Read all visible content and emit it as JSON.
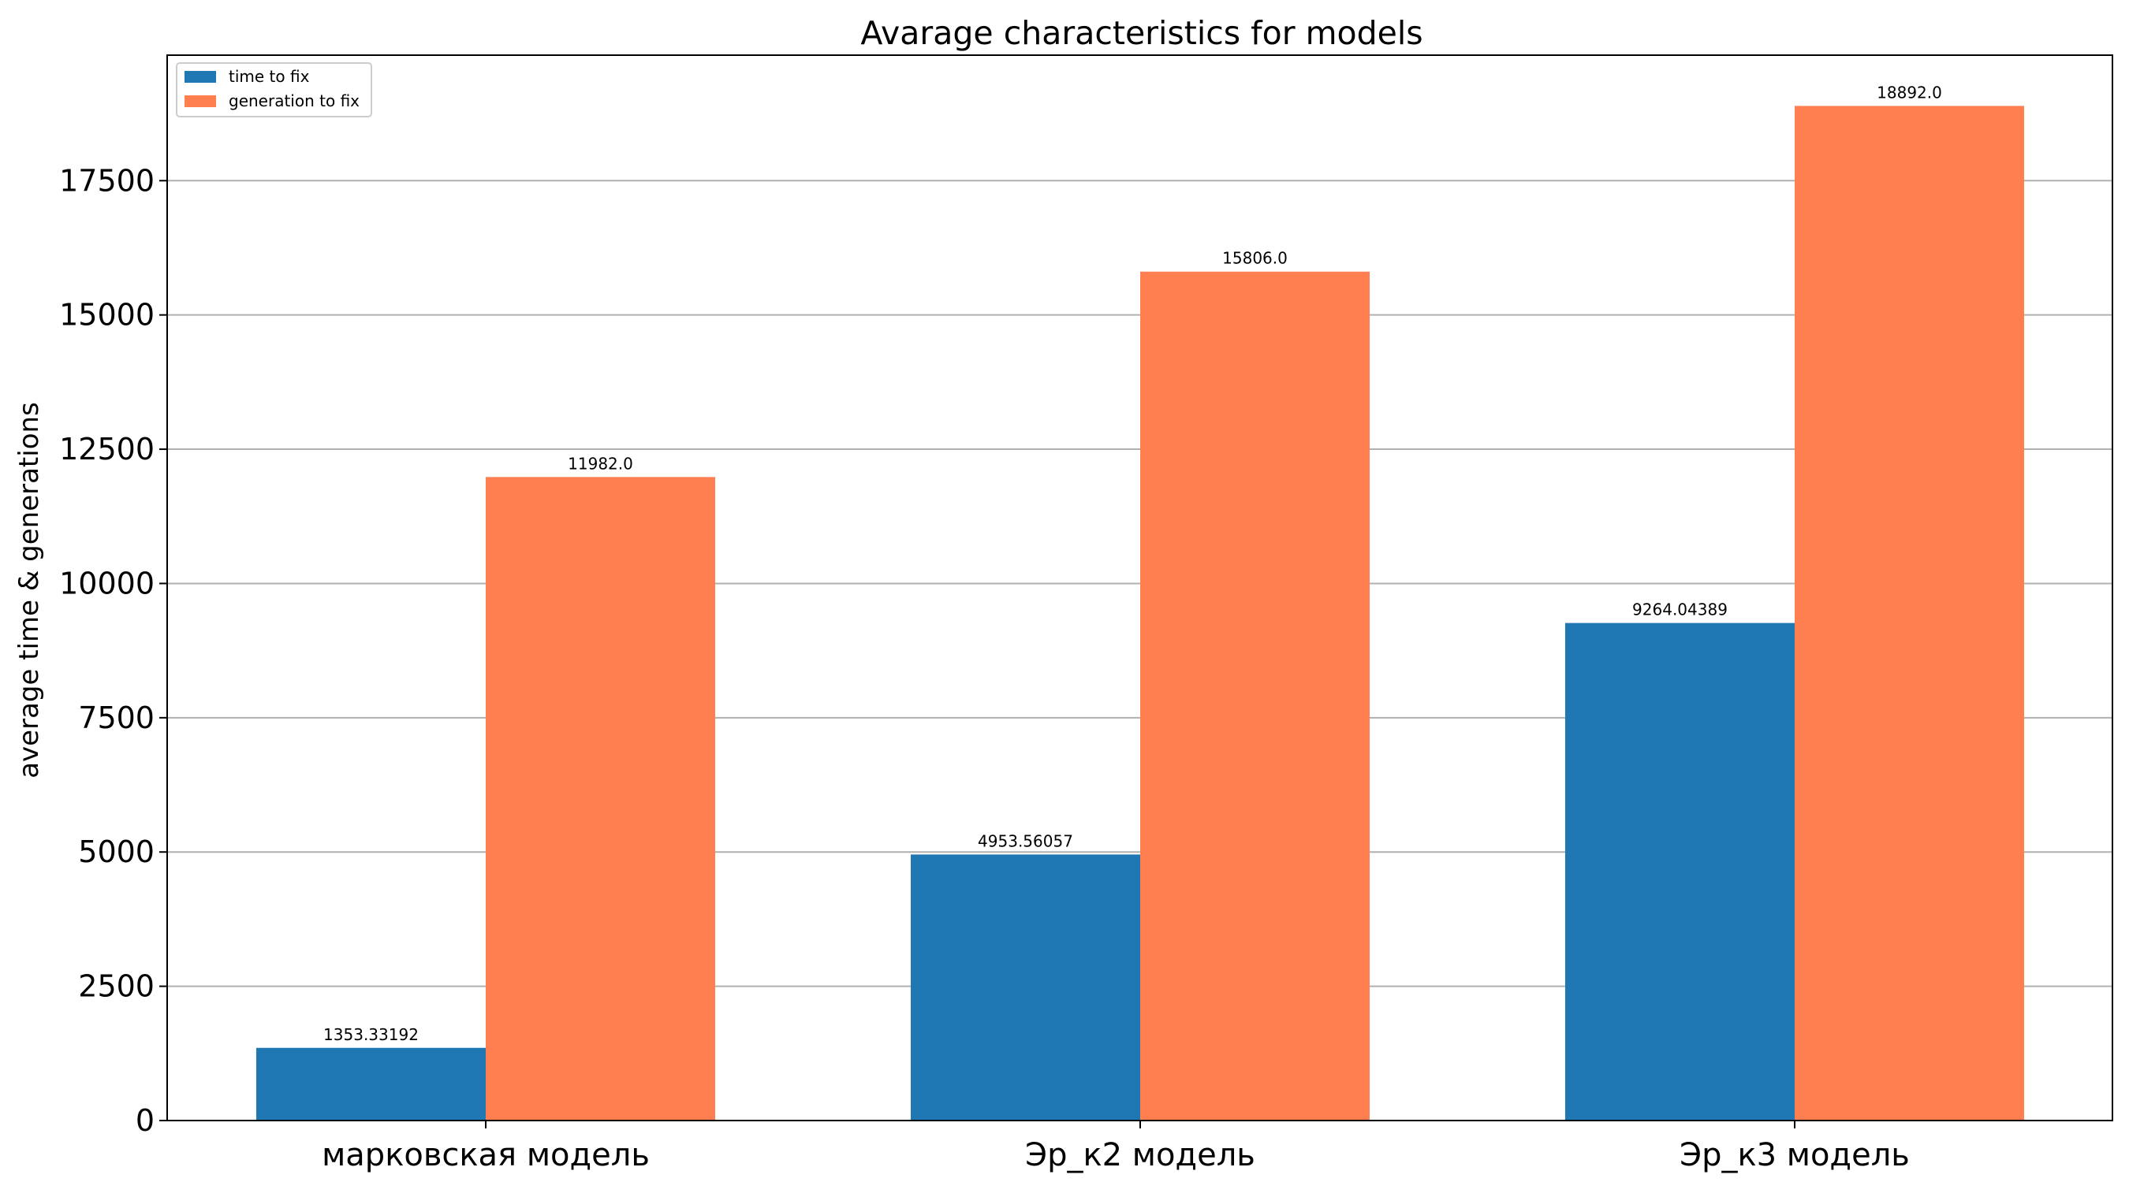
{
  "chart_data": {
    "type": "bar",
    "title": "Avarage characteristics for models",
    "xlabel": "",
    "ylabel": "average time & generations",
    "categories": [
      "марковская модель",
      "Эр_к2 модель",
      "Эр_к3 модель"
    ],
    "series": [
      {
        "name": "time to fix",
        "color": "#1f77b4",
        "values": [
          1353.33192,
          4953.56057,
          9264.04389
        ],
        "labels": [
          "1353.33192",
          "4953.56057",
          "9264.04389"
        ]
      },
      {
        "name": "generation to fix",
        "color": "#ff7f50",
        "values": [
          11982.0,
          15806.0,
          18892.0
        ],
        "labels": [
          "11982.0",
          "15806.0",
          "18892.0"
        ]
      }
    ],
    "yticks": [
      0,
      2500,
      5000,
      7500,
      10000,
      12500,
      15000,
      17500
    ],
    "ytick_labels": [
      "0",
      "2500",
      "5000",
      "7500",
      "10000",
      "12500",
      "15000",
      "17500"
    ],
    "ylim": [
      0,
      19837
    ],
    "grid": "y",
    "legend_position": "top-left"
  }
}
